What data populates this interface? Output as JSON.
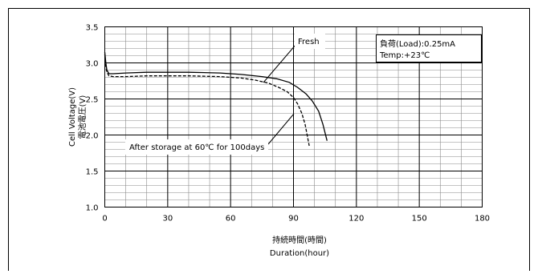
{
  "chart_data": {
    "type": "line",
    "xlabel_line1": "持続時間(時間)",
    "xlabel_line2": "Duration(hour)",
    "ylabel_line1": "Cell Voltage(V)",
    "ylabel_line2": "電池電圧(V)",
    "xlim": [
      0,
      180
    ],
    "ylim": [
      1.0,
      3.5
    ],
    "x_ticks": [
      0,
      30,
      60,
      90,
      120,
      150,
      180
    ],
    "y_ticks": [
      1.0,
      1.5,
      2.0,
      2.5,
      3.0,
      3.5
    ],
    "x_tick_labels": [
      "0",
      "30",
      "60",
      "90",
      "120",
      "150",
      "180"
    ],
    "y_tick_labels": [
      "1.0",
      "1.5",
      "2.0",
      "2.5",
      "3.0",
      "3.5"
    ],
    "grid": true,
    "series": [
      {
        "name": "Fresh",
        "style": "solid",
        "color": "#000000",
        "points": [
          [
            0,
            3.15
          ],
          [
            0.5,
            3.0
          ],
          [
            1,
            2.9
          ],
          [
            2,
            2.85
          ],
          [
            4,
            2.85
          ],
          [
            10,
            2.86
          ],
          [
            20,
            2.87
          ],
          [
            40,
            2.87
          ],
          [
            55,
            2.86
          ],
          [
            65,
            2.84
          ],
          [
            75,
            2.81
          ],
          [
            82,
            2.78
          ],
          [
            88,
            2.73
          ],
          [
            92,
            2.66
          ],
          [
            96,
            2.57
          ],
          [
            99,
            2.47
          ],
          [
            102,
            2.33
          ],
          [
            104,
            2.15
          ],
          [
            106,
            1.92
          ]
        ]
      },
      {
        "name": "After storage at 60℃ for 100days",
        "style": "dashed",
        "color": "#000000",
        "points": [
          [
            0,
            3.12
          ],
          [
            0.5,
            2.95
          ],
          [
            1,
            2.87
          ],
          [
            2,
            2.82
          ],
          [
            4,
            2.81
          ],
          [
            10,
            2.81
          ],
          [
            20,
            2.82
          ],
          [
            40,
            2.82
          ],
          [
            55,
            2.81
          ],
          [
            65,
            2.79
          ],
          [
            72,
            2.76
          ],
          [
            78,
            2.72
          ],
          [
            83,
            2.66
          ],
          [
            87,
            2.6
          ],
          [
            90,
            2.52
          ],
          [
            92,
            2.43
          ],
          [
            94,
            2.3
          ],
          [
            95.5,
            2.15
          ],
          [
            96.5,
            2.0
          ],
          [
            97.5,
            1.85
          ]
        ]
      }
    ],
    "annotations": {
      "condition_line1": "負荷(Load):0.25mA",
      "condition_line2": "Temp:+23℃",
      "fresh_label": "Fresh",
      "storage_label": "After storage at 60℃ for 100days"
    }
  }
}
